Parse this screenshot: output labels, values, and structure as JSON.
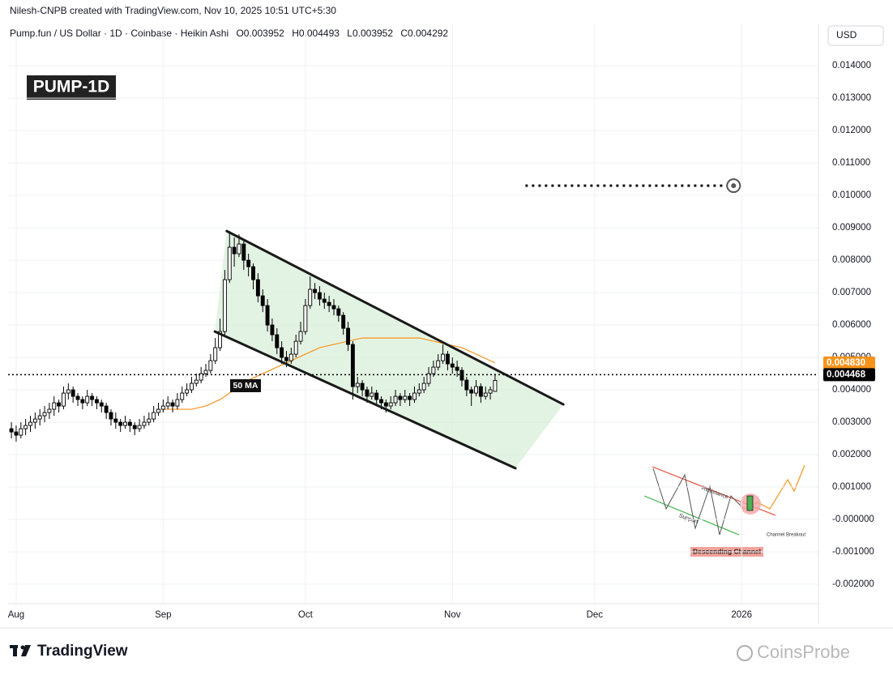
{
  "header": {
    "credit": "Nilesh-CNPB created with TradingView.com, Nov 10, 2025 10:51 UTC+5:30",
    "symbol": "Pump.fun / US Dollar · 1D · Coinbase · Heikin Ashi",
    "ohlc_keys": [
      "O",
      "H",
      "L",
      "C"
    ]
  },
  "chart_data": {
    "type": "candlestick",
    "title": "PUMP-1D",
    "currency": "USD",
    "ylim": [
      -0.0026,
      0.01528
    ],
    "yticks": [
      {
        "value": 0.014,
        "label": "0.014000"
      },
      {
        "value": 0.013,
        "label": "0.013000"
      },
      {
        "value": 0.012,
        "label": "0.012000"
      },
      {
        "value": 0.011,
        "label": "0.011000"
      },
      {
        "value": 0.01,
        "label": "0.010000"
      },
      {
        "value": 0.009,
        "label": "0.009000"
      },
      {
        "value": 0.008,
        "label": "0.008000"
      },
      {
        "value": 0.007,
        "label": "0.007000"
      },
      {
        "value": 0.006,
        "label": "0.006000"
      },
      {
        "value": 0.005,
        "label": "0.005000"
      },
      {
        "value": 0.004,
        "label": "0.004000"
      },
      {
        "value": 0.003,
        "label": "0.003000"
      },
      {
        "value": 0.002,
        "label": "0.002000"
      },
      {
        "value": 0.001,
        "label": "0.001000"
      },
      {
        "value": 0,
        "label": "-0.000000"
      },
      {
        "value": -0.001,
        "label": "-0.001000"
      },
      {
        "value": -0.002,
        "label": "-0.002000"
      }
    ],
    "xlim": [
      -1.7,
      169.2
    ],
    "xticks": [
      {
        "value": 0,
        "label": "Aug"
      },
      {
        "value": 31,
        "label": "Sep"
      },
      {
        "value": 61,
        "label": "Oct"
      },
      {
        "value": 92,
        "label": "Nov"
      },
      {
        "value": 122,
        "label": "Dec"
      },
      {
        "value": 153,
        "label": "2026"
      }
    ],
    "grid": true,
    "x": [
      -1,
      0,
      1,
      2,
      3,
      4,
      5,
      6,
      7,
      8,
      9,
      10,
      11,
      12,
      13,
      14,
      15,
      16,
      17,
      18,
      19,
      20,
      21,
      22,
      23,
      24,
      25,
      26,
      27,
      28,
      29,
      30,
      31,
      32,
      33,
      34,
      35,
      36,
      37,
      38,
      39,
      40,
      41,
      42,
      43,
      44,
      45,
      46,
      47,
      48,
      49,
      50,
      51,
      52,
      53,
      54,
      55,
      56,
      57,
      58,
      59,
      60,
      61,
      62,
      63,
      64,
      65,
      66,
      67,
      68,
      69,
      70,
      71,
      72,
      73,
      74,
      75,
      76,
      77,
      78,
      79,
      80,
      81,
      82,
      83,
      84,
      85,
      86,
      87,
      88,
      89,
      90,
      91,
      92,
      93,
      94,
      95,
      96,
      97,
      98,
      99,
      100,
      101
    ],
    "ohlc": [
      [
        0.0028,
        0.003,
        0.0025,
        0.0027
      ],
      [
        0.0027,
        0.0029,
        0.0024,
        0.0026
      ],
      [
        0.0026,
        0.003,
        0.0025,
        0.0028
      ],
      [
        0.0028,
        0.0031,
        0.0026,
        0.0029
      ],
      [
        0.0029,
        0.0032,
        0.0027,
        0.003
      ],
      [
        0.003,
        0.0033,
        0.0028,
        0.0031
      ],
      [
        0.0031,
        0.0034,
        0.0029,
        0.0032
      ],
      [
        0.0032,
        0.0035,
        0.003,
        0.0033
      ],
      [
        0.0033,
        0.0036,
        0.0031,
        0.0034
      ],
      [
        0.0034,
        0.0038,
        0.0032,
        0.0036
      ],
      [
        0.0036,
        0.0037,
        0.0033,
        0.0035
      ],
      [
        0.0035,
        0.0041,
        0.0034,
        0.0039
      ],
      [
        0.0039,
        0.0042,
        0.0037,
        0.004
      ],
      [
        0.004,
        0.0041,
        0.0036,
        0.0038
      ],
      [
        0.0038,
        0.0039,
        0.0035,
        0.0037
      ],
      [
        0.0037,
        0.0038,
        0.0034,
        0.0036
      ],
      [
        0.0036,
        0.004,
        0.0035,
        0.0038
      ],
      [
        0.0038,
        0.0039,
        0.0035,
        0.0037
      ],
      [
        0.0037,
        0.0038,
        0.0034,
        0.0036
      ],
      [
        0.0036,
        0.0037,
        0.0033,
        0.0035
      ],
      [
        0.0035,
        0.0036,
        0.0031,
        0.0033
      ],
      [
        0.0033,
        0.0034,
        0.0029,
        0.0031
      ],
      [
        0.0031,
        0.0033,
        0.0028,
        0.003
      ],
      [
        0.003,
        0.0031,
        0.0027,
        0.0029
      ],
      [
        0.0029,
        0.0032,
        0.0028,
        0.003
      ],
      [
        0.003,
        0.0031,
        0.0027,
        0.0029
      ],
      [
        0.0029,
        0.003,
        0.0026,
        0.0028
      ],
      [
        0.0028,
        0.0031,
        0.0027,
        0.0029
      ],
      [
        0.0029,
        0.0032,
        0.0028,
        0.003
      ],
      [
        0.003,
        0.0033,
        0.0029,
        0.0031
      ],
      [
        0.0031,
        0.0035,
        0.003,
        0.0033
      ],
      [
        0.0033,
        0.0036,
        0.0032,
        0.0034
      ],
      [
        0.0034,
        0.0037,
        0.0033,
        0.0035
      ],
      [
        0.0035,
        0.0038,
        0.0034,
        0.0036
      ],
      [
        0.0036,
        0.0037,
        0.0033,
        0.0035
      ],
      [
        0.0035,
        0.0039,
        0.0034,
        0.0037
      ],
      [
        0.0037,
        0.0041,
        0.0036,
        0.0039
      ],
      [
        0.0039,
        0.0042,
        0.0038,
        0.004
      ],
      [
        0.004,
        0.0044,
        0.0039,
        0.0042
      ],
      [
        0.0042,
        0.0045,
        0.0041,
        0.0043
      ],
      [
        0.0043,
        0.0047,
        0.0042,
        0.0045
      ],
      [
        0.0045,
        0.0048,
        0.0044,
        0.0046
      ],
      [
        0.0046,
        0.0051,
        0.0045,
        0.0049
      ],
      [
        0.0049,
        0.0056,
        0.0048,
        0.0053
      ],
      [
        0.0053,
        0.0062,
        0.0052,
        0.0058
      ],
      [
        0.0058,
        0.0077,
        0.0057,
        0.0074
      ],
      [
        0.0074,
        0.0089,
        0.0073,
        0.0084
      ],
      [
        0.0084,
        0.0087,
        0.0078,
        0.0082
      ],
      [
        0.0082,
        0.0088,
        0.0081,
        0.0085
      ],
      [
        0.0085,
        0.0086,
        0.0077,
        0.008
      ],
      [
        0.008,
        0.0082,
        0.0075,
        0.0078
      ],
      [
        0.0078,
        0.0079,
        0.0071,
        0.0074
      ],
      [
        0.0074,
        0.0076,
        0.0067,
        0.0069
      ],
      [
        0.0069,
        0.0071,
        0.0064,
        0.0066
      ],
      [
        0.0066,
        0.0068,
        0.0058,
        0.006
      ],
      [
        0.006,
        0.0062,
        0.0055,
        0.0057
      ],
      [
        0.0057,
        0.0059,
        0.0051,
        0.0053
      ],
      [
        0.0053,
        0.0055,
        0.0048,
        0.005
      ],
      [
        0.005,
        0.0052,
        0.0047,
        0.0049
      ],
      [
        0.0049,
        0.0053,
        0.0048,
        0.0051
      ],
      [
        0.0051,
        0.0057,
        0.005,
        0.0055
      ],
      [
        0.0055,
        0.0061,
        0.0054,
        0.0058
      ],
      [
        0.0058,
        0.0068,
        0.0057,
        0.0066
      ],
      [
        0.0066,
        0.0075,
        0.0065,
        0.0071
      ],
      [
        0.0071,
        0.0073,
        0.0068,
        0.007
      ],
      [
        0.007,
        0.0072,
        0.0066,
        0.0068
      ],
      [
        0.0068,
        0.007,
        0.0065,
        0.0067
      ],
      [
        0.0067,
        0.0069,
        0.0064,
        0.0066
      ],
      [
        0.0066,
        0.0068,
        0.0063,
        0.0065
      ],
      [
        0.0065,
        0.0066,
        0.0061,
        0.0063
      ],
      [
        0.0063,
        0.0064,
        0.0057,
        0.0059
      ],
      [
        0.0059,
        0.0061,
        0.0052,
        0.0054
      ],
      [
        0.0054,
        0.0055,
        0.0037,
        0.0041
      ],
      [
        0.0041,
        0.0044,
        0.0039,
        0.0042
      ],
      [
        0.0042,
        0.0043,
        0.0038,
        0.004
      ],
      [
        0.004,
        0.0041,
        0.0036,
        0.0038
      ],
      [
        0.0038,
        0.0041,
        0.0037,
        0.0039
      ],
      [
        0.0039,
        0.004,
        0.0035,
        0.0037
      ],
      [
        0.0037,
        0.0038,
        0.0034,
        0.0036
      ],
      [
        0.0036,
        0.0037,
        0.0033,
        0.0035
      ],
      [
        0.0035,
        0.0038,
        0.0034,
        0.0036
      ],
      [
        0.0036,
        0.004,
        0.0035,
        0.0038
      ],
      [
        0.0038,
        0.0039,
        0.0035,
        0.0037
      ],
      [
        0.0037,
        0.004,
        0.0036,
        0.0038
      ],
      [
        0.0038,
        0.0039,
        0.0035,
        0.0037
      ],
      [
        0.0037,
        0.0041,
        0.0036,
        0.0039
      ],
      [
        0.0039,
        0.0042,
        0.0038,
        0.004
      ],
      [
        0.004,
        0.0044,
        0.0039,
        0.0042
      ],
      [
        0.0042,
        0.0047,
        0.0041,
        0.0045
      ],
      [
        0.0045,
        0.0049,
        0.0044,
        0.0047
      ],
      [
        0.0047,
        0.0051,
        0.0046,
        0.0049
      ],
      [
        0.0049,
        0.0054,
        0.0048,
        0.0051
      ],
      [
        0.0051,
        0.0052,
        0.0046,
        0.0048
      ],
      [
        0.0048,
        0.005,
        0.0045,
        0.0047
      ],
      [
        0.0047,
        0.0049,
        0.0044,
        0.0046
      ],
      [
        0.0046,
        0.0047,
        0.0041,
        0.0043
      ],
      [
        0.0043,
        0.0044,
        0.0038,
        0.004
      ],
      [
        0.004,
        0.0041,
        0.0035,
        0.0039
      ],
      [
        0.0039,
        0.0043,
        0.0038,
        0.0041
      ],
      [
        0.0041,
        0.0042,
        0.0036,
        0.0038
      ],
      [
        0.0038,
        0.0041,
        0.0037,
        0.0039
      ],
      [
        0.0039,
        0.0041,
        0.0037,
        0.004
      ],
      [
        0.003952,
        0.004493,
        0.003952,
        0.004292
      ]
    ],
    "ma": {
      "name": "50 MA",
      "color": "#f7931a",
      "x": [
        31,
        34,
        37,
        40,
        43,
        46,
        49,
        52,
        55,
        58,
        61,
        64,
        67,
        70,
        73,
        76,
        79,
        82,
        85,
        88,
        91,
        94,
        97,
        101
      ],
      "values": [
        0.0034,
        0.0034,
        0.0034,
        0.0035,
        0.0037,
        0.004,
        0.0043,
        0.0045,
        0.0047,
        0.0049,
        0.0051,
        0.0053,
        0.0054,
        0.0055,
        0.0056,
        0.0056,
        0.0056,
        0.0056,
        0.0056,
        0.0055,
        0.0054,
        0.0053,
        0.0051,
        0.00483
      ]
    },
    "price_labels": [
      {
        "value": 0.00483,
        "label": "0.004830",
        "color": "#f7931a"
      },
      {
        "value": 0.004468,
        "label": "0.004468",
        "color": "#000000"
      }
    ],
    "channel": {
      "color": "#d4edd4",
      "upper": {
        "x": [
          44.4,
          115.4
        ],
        "values": [
          0.0089,
          0.00355
        ]
      },
      "lower": {
        "x": [
          41.9,
          105.3
        ],
        "values": [
          0.0058,
          0.00158
        ]
      }
    },
    "target": {
      "value": 0.0103,
      "x": [
        107.4,
        151.3
      ]
    }
  },
  "inset": {
    "resistance": "Resistance",
    "support": "Support",
    "breakout": "Channel Breakout",
    "caption": "Descending Channel"
  },
  "footer": {
    "brand": "TradingView",
    "watermark": "CoinsProbe"
  }
}
